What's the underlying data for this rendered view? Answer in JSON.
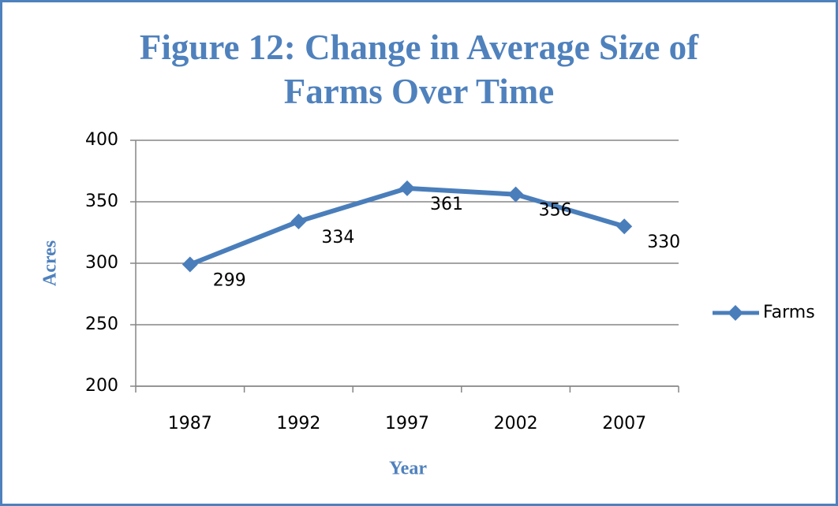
{
  "chart_data": {
    "type": "line",
    "title": "Figure 12: Change in Average Size of Farms Over Time",
    "x_label": "Year",
    "y_label": "Acres",
    "categories": [
      "1987",
      "1992",
      "1997",
      "2002",
      "2007"
    ],
    "series": [
      {
        "name": "Farms",
        "color": "#4a7ebb",
        "values": [
          299,
          334,
          361,
          356,
          330
        ]
      }
    ],
    "ylim": [
      200,
      400
    ],
    "yticks": [
      200,
      250,
      300,
      350,
      400
    ],
    "grid": true,
    "legend": "right"
  }
}
